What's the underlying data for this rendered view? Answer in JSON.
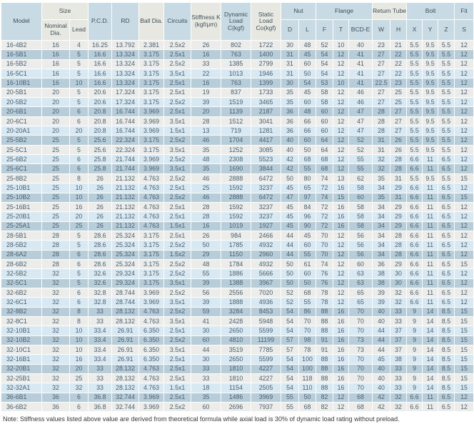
{
  "colors": {
    "header_bg": "#c8dae3",
    "header_bg_light": "#e7e8e1",
    "row_light": "#ececea",
    "row_medium": "#b8cdda",
    "row_blue": "#d9e9f3",
    "header_text": "#3e4f59",
    "body_text": "#48606d",
    "grid": "#ffffff"
  },
  "header": {
    "groups": [
      {
        "label": "Model",
        "light": false
      },
      {
        "label": "Size",
        "light": true,
        "children": [
          {
            "label": "Nominal Dia.",
            "light": true
          },
          {
            "label": "Lead",
            "light": true
          }
        ]
      },
      {
        "label": "P.C.D.",
        "light": false
      },
      {
        "label": "RD",
        "light": false
      },
      {
        "label": "Ball Dia.",
        "light": true
      },
      {
        "label": "Circuits",
        "light": false
      },
      {
        "label": "Stiffness K (kgf/μm)",
        "light": true
      },
      {
        "label": "Dynamic Load C(kgf)",
        "light": false
      },
      {
        "label": "Static Load Co(kgf)",
        "light": true
      },
      {
        "label": "Nut",
        "light": false,
        "children": [
          {
            "label": "D",
            "light": false
          },
          {
            "label": "L",
            "light": false
          }
        ]
      },
      {
        "label": "Flange",
        "light": false,
        "children": [
          {
            "label": "F",
            "light": false
          },
          {
            "label": "T",
            "light": false
          },
          {
            "label": "BCD-E",
            "light": false
          }
        ]
      },
      {
        "label": "Return Tube",
        "light": true,
        "children": [
          {
            "label": "W",
            "light": false
          },
          {
            "label": "H",
            "light": false
          }
        ]
      },
      {
        "label": "Bolt",
        "light": false,
        "children": [
          {
            "label": "X",
            "light": false
          },
          {
            "label": "Y",
            "light": false
          },
          {
            "label": "Z",
            "light": false
          }
        ]
      },
      {
        "label": "Fit",
        "light": false,
        "children": [
          {
            "label": "S",
            "light": false
          }
        ]
      }
    ]
  },
  "rows": [
    [
      "16-4B2",
      "16",
      "4",
      "16.25",
      "13.792",
      "2.381",
      "2.5x2",
      "26",
      "802",
      "1722",
      "30",
      "48",
      "52",
      "10",
      "40",
      "23",
      "21",
      "5.5",
      "9.5",
      "5.5",
      "12"
    ],
    [
      "16-5B1",
      "16",
      "5",
      "16.6",
      "13.324",
      "3.175",
      "2.5x1",
      "16",
      "763",
      "1400",
      "31",
      "45",
      "54",
      "12",
      "41",
      "27",
      "22",
      "5.5",
      "9.5",
      "5.5",
      "12"
    ],
    [
      "16-5B2",
      "16",
      "5",
      "16.6",
      "13.324",
      "3.175",
      "2.5x2",
      "33",
      "1385",
      "2799",
      "31",
      "60",
      "54",
      "12",
      "41",
      "27",
      "22",
      "5.5",
      "9.5",
      "5.5",
      "12"
    ],
    [
      "16-5C1",
      "16",
      "5",
      "16.6",
      "13.324",
      "3.175",
      "3.5x1",
      "22",
      "1013",
      "1946",
      "31",
      "50",
      "54",
      "12",
      "41",
      "27",
      "22",
      "5.5",
      "9.5",
      "5.5",
      "12"
    ],
    [
      "16-10B1",
      "16",
      "10",
      "16.6",
      "13.324",
      "3.175",
      "2.5x1",
      "16",
      "763",
      "1399",
      "30",
      "54",
      "53",
      "10",
      "41",
      "22.5",
      "23",
      "5.5",
      "9.5",
      "5.5",
      "12"
    ],
    [
      "20-5B1",
      "20",
      "5",
      "20.6",
      "17.324",
      "3.175",
      "2.5x1",
      "19",
      "837",
      "1733",
      "35",
      "45",
      "58",
      "12",
      "46",
      "27",
      "25",
      "5.5",
      "9.5",
      "5.5",
      "12"
    ],
    [
      "20-5B2",
      "20",
      "5",
      "20.6",
      "17.324",
      "3.175",
      "2.5x2",
      "39",
      "1519",
      "3465",
      "35",
      "60",
      "58",
      "12",
      "46",
      "27",
      "25",
      "5.5",
      "9.5",
      "5.5",
      "12"
    ],
    [
      "20-6B1",
      "20",
      "6",
      "20.8",
      "16.744",
      "3.969",
      "2.5x1",
      "20",
      "1139",
      "2187",
      "36",
      "48",
      "60",
      "12",
      "47",
      "28",
      "27",
      "5.5",
      "9.5",
      "5.5",
      "12"
    ],
    [
      "20-6C1",
      "20",
      "6",
      "20.8",
      "16.744",
      "3.969",
      "3.5x1",
      "28",
      "1512",
      "3041",
      "36",
      "66",
      "60",
      "12",
      "47",
      "28",
      "27",
      "5.5",
      "9.5",
      "5.5",
      "12"
    ],
    [
      "20-20A1",
      "20",
      "20",
      "20.8",
      "16.744",
      "3.969",
      "1.5x1",
      "13",
      "719",
      "1281",
      "36",
      "66",
      "60",
      "12",
      "47",
      "28",
      "27",
      "5.5",
      "9.5",
      "5.5",
      "12"
    ],
    [
      "25-5B2",
      "25",
      "5",
      "25.6",
      "22.324",
      "3.175",
      "2.5x2",
      "46",
      "1704",
      "4417",
      "40",
      "60",
      "64",
      "12",
      "52",
      "31",
      "26",
      "5.5",
      "9.5",
      "5.5",
      "12"
    ],
    [
      "25-5C1",
      "25",
      "5",
      "25.6",
      "22.324",
      "3.175",
      "3.5x1",
      "35",
      "1252",
      "3085",
      "40",
      "50",
      "64",
      "12",
      "52",
      "31",
      "26",
      "5.5",
      "9.5",
      "5.5",
      "12"
    ],
    [
      "25-6B2",
      "25",
      "6",
      "25.8",
      "21.744",
      "3.969",
      "2.5x2",
      "48",
      "2308",
      "5523",
      "42",
      "68",
      "68",
      "12",
      "55",
      "32",
      "28",
      "6.6",
      "11",
      "6.5",
      "12"
    ],
    [
      "25-6C1",
      "25",
      "6",
      "25.8",
      "21.744",
      "3.969",
      "3.5x1",
      "35",
      "1690",
      "3844",
      "42",
      "55",
      "68",
      "12",
      "55",
      "32",
      "28",
      "6.6",
      "11",
      "6.5",
      "12"
    ],
    [
      "25-8B2",
      "25",
      "8",
      "26",
      "21.132",
      "4.763",
      "2.5x2",
      "46",
      "2888",
      "6472",
      "50",
      "80",
      "74",
      "13",
      "62",
      "35",
      "31",
      "5.5",
      "9.5",
      "5.5",
      "15"
    ],
    [
      "25-10B1",
      "25",
      "10",
      "26",
      "21.132",
      "4.763",
      "2.5x1",
      "25",
      "1592",
      "3237",
      "45",
      "65",
      "72",
      "16",
      "58",
      "34",
      "29",
      "6.6",
      "11",
      "6.5",
      "12"
    ],
    [
      "25-10B2",
      "25",
      "10",
      "26",
      "21.132",
      "4.763",
      "2.5x2",
      "46",
      "2888",
      "6472",
      "47",
      "97",
      "74",
      "15",
      "60",
      "35",
      "31",
      "6.6",
      "11",
      "6.5",
      "15"
    ],
    [
      "25-16B1",
      "25",
      "16",
      "26",
      "21.132",
      "4.763",
      "2.5x1",
      "28",
      "1592",
      "3237",
      "45",
      "84",
      "72",
      "16",
      "58",
      "34",
      "29",
      "6.6",
      "11",
      "6.5",
      "12"
    ],
    [
      "25-20B1",
      "25",
      "20",
      "26",
      "21.132",
      "4.763",
      "2.5x1",
      "28",
      "1592",
      "3237",
      "45",
      "96",
      "72",
      "16",
      "58",
      "34",
      "29",
      "6.6",
      "11",
      "6.5",
      "12"
    ],
    [
      "25-25A1",
      "25",
      "25",
      "26",
      "21.132",
      "4.763",
      "1.5x1",
      "16",
      "1019",
      "1927",
      "45",
      "90",
      "72",
      "16",
      "58",
      "34",
      "29",
      "6.6",
      "11",
      "6.5",
      "12"
    ],
    [
      "28-5B1",
      "28",
      "5",
      "28.6",
      "25.324",
      "3.175",
      "2.5x1",
      "26",
      "984",
      "2466",
      "44",
      "45",
      "70",
      "12",
      "56",
      "34",
      "28",
      "6.6",
      "11",
      "6.5",
      "12"
    ],
    [
      "28-5B2",
      "28",
      "5",
      "28.6",
      "25.324",
      "3.175",
      "2.5x2",
      "50",
      "1785",
      "4932",
      "44",
      "60",
      "70",
      "12",
      "56",
      "34",
      "28",
      "6.6",
      "11",
      "6.5",
      "12"
    ],
    [
      "28-6A2",
      "28",
      "6",
      "28.6",
      "25.324",
      "3.175",
      "1.5x2",
      "29",
      "1150",
      "2960",
      "44",
      "55",
      "70",
      "12",
      "56",
      "34",
      "28",
      "6.6",
      "11",
      "6.5",
      "12"
    ],
    [
      "28-6B2",
      "28",
      "6",
      "28.6",
      "25.324",
      "3.175",
      "2.5x2",
      "48",
      "1784",
      "4932",
      "50",
      "61",
      "74",
      "12",
      "60",
      "36",
      "29",
      "6.6",
      "11",
      "6.5",
      "15"
    ],
    [
      "32-5B2",
      "32",
      "5",
      "32.6",
      "29.324",
      "3.175",
      "2.5x2",
      "55",
      "1886",
      "5666",
      "50",
      "60",
      "76",
      "12",
      "63",
      "38",
      "30",
      "6.6",
      "11",
      "6.5",
      "12"
    ],
    [
      "32-5C1",
      "32",
      "5",
      "32.6",
      "29.324",
      "3.175",
      "3.5x1",
      "39",
      "1388",
      "3967",
      "50",
      "50",
      "76",
      "12",
      "63",
      "38",
      "30",
      "6.6",
      "11",
      "6.5",
      "12"
    ],
    [
      "32-6B2",
      "32",
      "6",
      "32.8",
      "28.744",
      "3.969",
      "2.5x2",
      "56",
      "2556",
      "7020",
      "52",
      "68",
      "78",
      "12",
      "65",
      "39",
      "32",
      "6.6",
      "11",
      "6.5",
      "12"
    ],
    [
      "32-6C1",
      "32",
      "6",
      "32.8",
      "28.744",
      "3.969",
      "3.5x1",
      "39",
      "1888",
      "4936",
      "52",
      "55",
      "78",
      "12",
      "65",
      "39",
      "32",
      "6.6",
      "11",
      "6.5",
      "12"
    ],
    [
      "32-8B2",
      "32",
      "8",
      "33",
      "28.132",
      "4.763",
      "2.5x2",
      "59",
      "3284",
      "8453",
      "54",
      "86",
      "88",
      "16",
      "70",
      "40",
      "33",
      "9",
      "14",
      "8.5",
      "15"
    ],
    [
      "32-8C1",
      "32",
      "8",
      "33",
      "28.132",
      "4.763",
      "3.5x1",
      "41",
      "2428",
      "5948",
      "54",
      "70",
      "88",
      "16",
      "70",
      "40",
      "33",
      "9",
      "14",
      "8.5",
      "15"
    ],
    [
      "32-10B1",
      "32",
      "10",
      "33.4",
      "26.91",
      "6.350",
      "2.5x1",
      "30",
      "2650",
      "5599",
      "54",
      "70",
      "88",
      "16",
      "70",
      "44",
      "37",
      "9",
      "14",
      "8.5",
      "15"
    ],
    [
      "32-10B2",
      "32",
      "10",
      "33.4",
      "26.91",
      "6.350",
      "2.5x2",
      "60",
      "4810",
      "11199",
      "57",
      "98",
      "91",
      "16",
      "73",
      "44",
      "37",
      "9",
      "14",
      "8.5",
      "15"
    ],
    [
      "32-10C1",
      "32",
      "10",
      "33.4",
      "26.91",
      "6.350",
      "3.5x1",
      "44",
      "3519",
      "7785",
      "57",
      "78",
      "91",
      "16",
      "73",
      "44",
      "37",
      "9",
      "14",
      "8.5",
      "15"
    ],
    [
      "32-16B1",
      "32",
      "16",
      "33.4",
      "26.91",
      "6.350",
      "2.5x1",
      "30",
      "2650",
      "5599",
      "54",
      "100",
      "88",
      "16",
      "70",
      "45",
      "38",
      "9",
      "14",
      "8.5",
      "15"
    ],
    [
      "32-20B1",
      "32",
      "20",
      "33",
      "28.132",
      "4.763",
      "2.5x1",
      "33",
      "1810",
      "4227",
      "54",
      "100",
      "88",
      "16",
      "70",
      "40",
      "33",
      "9",
      "14",
      "8.5",
      "15"
    ],
    [
      "32-25B1",
      "32",
      "25",
      "33",
      "28.132",
      "4.763",
      "2.5x1",
      "33",
      "1810",
      "4227",
      "54",
      "118",
      "88",
      "16",
      "70",
      "40",
      "33",
      "9",
      "14",
      "8.5",
      "15"
    ],
    [
      "32-32A1",
      "32",
      "32",
      "33",
      "28.132",
      "4.763",
      "1.5x1",
      "18",
      "1154",
      "2505",
      "54",
      "110",
      "88",
      "16",
      "70",
      "40",
      "33",
      "9",
      "14",
      "8.5",
      "15"
    ],
    [
      "36-6B1",
      "36",
      "6",
      "36.8",
      "32.744",
      "3.969",
      "2.5x1",
      "35",
      "1486",
      "3969",
      "55",
      "50",
      "82",
      "12",
      "68",
      "42",
      "32",
      "6.6",
      "11",
      "6.5",
      "12"
    ],
    [
      "36-6B2",
      "36",
      "6",
      "36.8",
      "32.744",
      "3.969",
      "2.5x2",
      "60",
      "2696",
      "7937",
      "55",
      "68",
      "82",
      "12",
      "68",
      "42",
      "32",
      "6.6",
      "11",
      "6.5",
      "12"
    ]
  ],
  "note": "Note: Stiffness values listed above value are derived from theoretical formula while axial load is 30% of dynamic load rating without preload."
}
